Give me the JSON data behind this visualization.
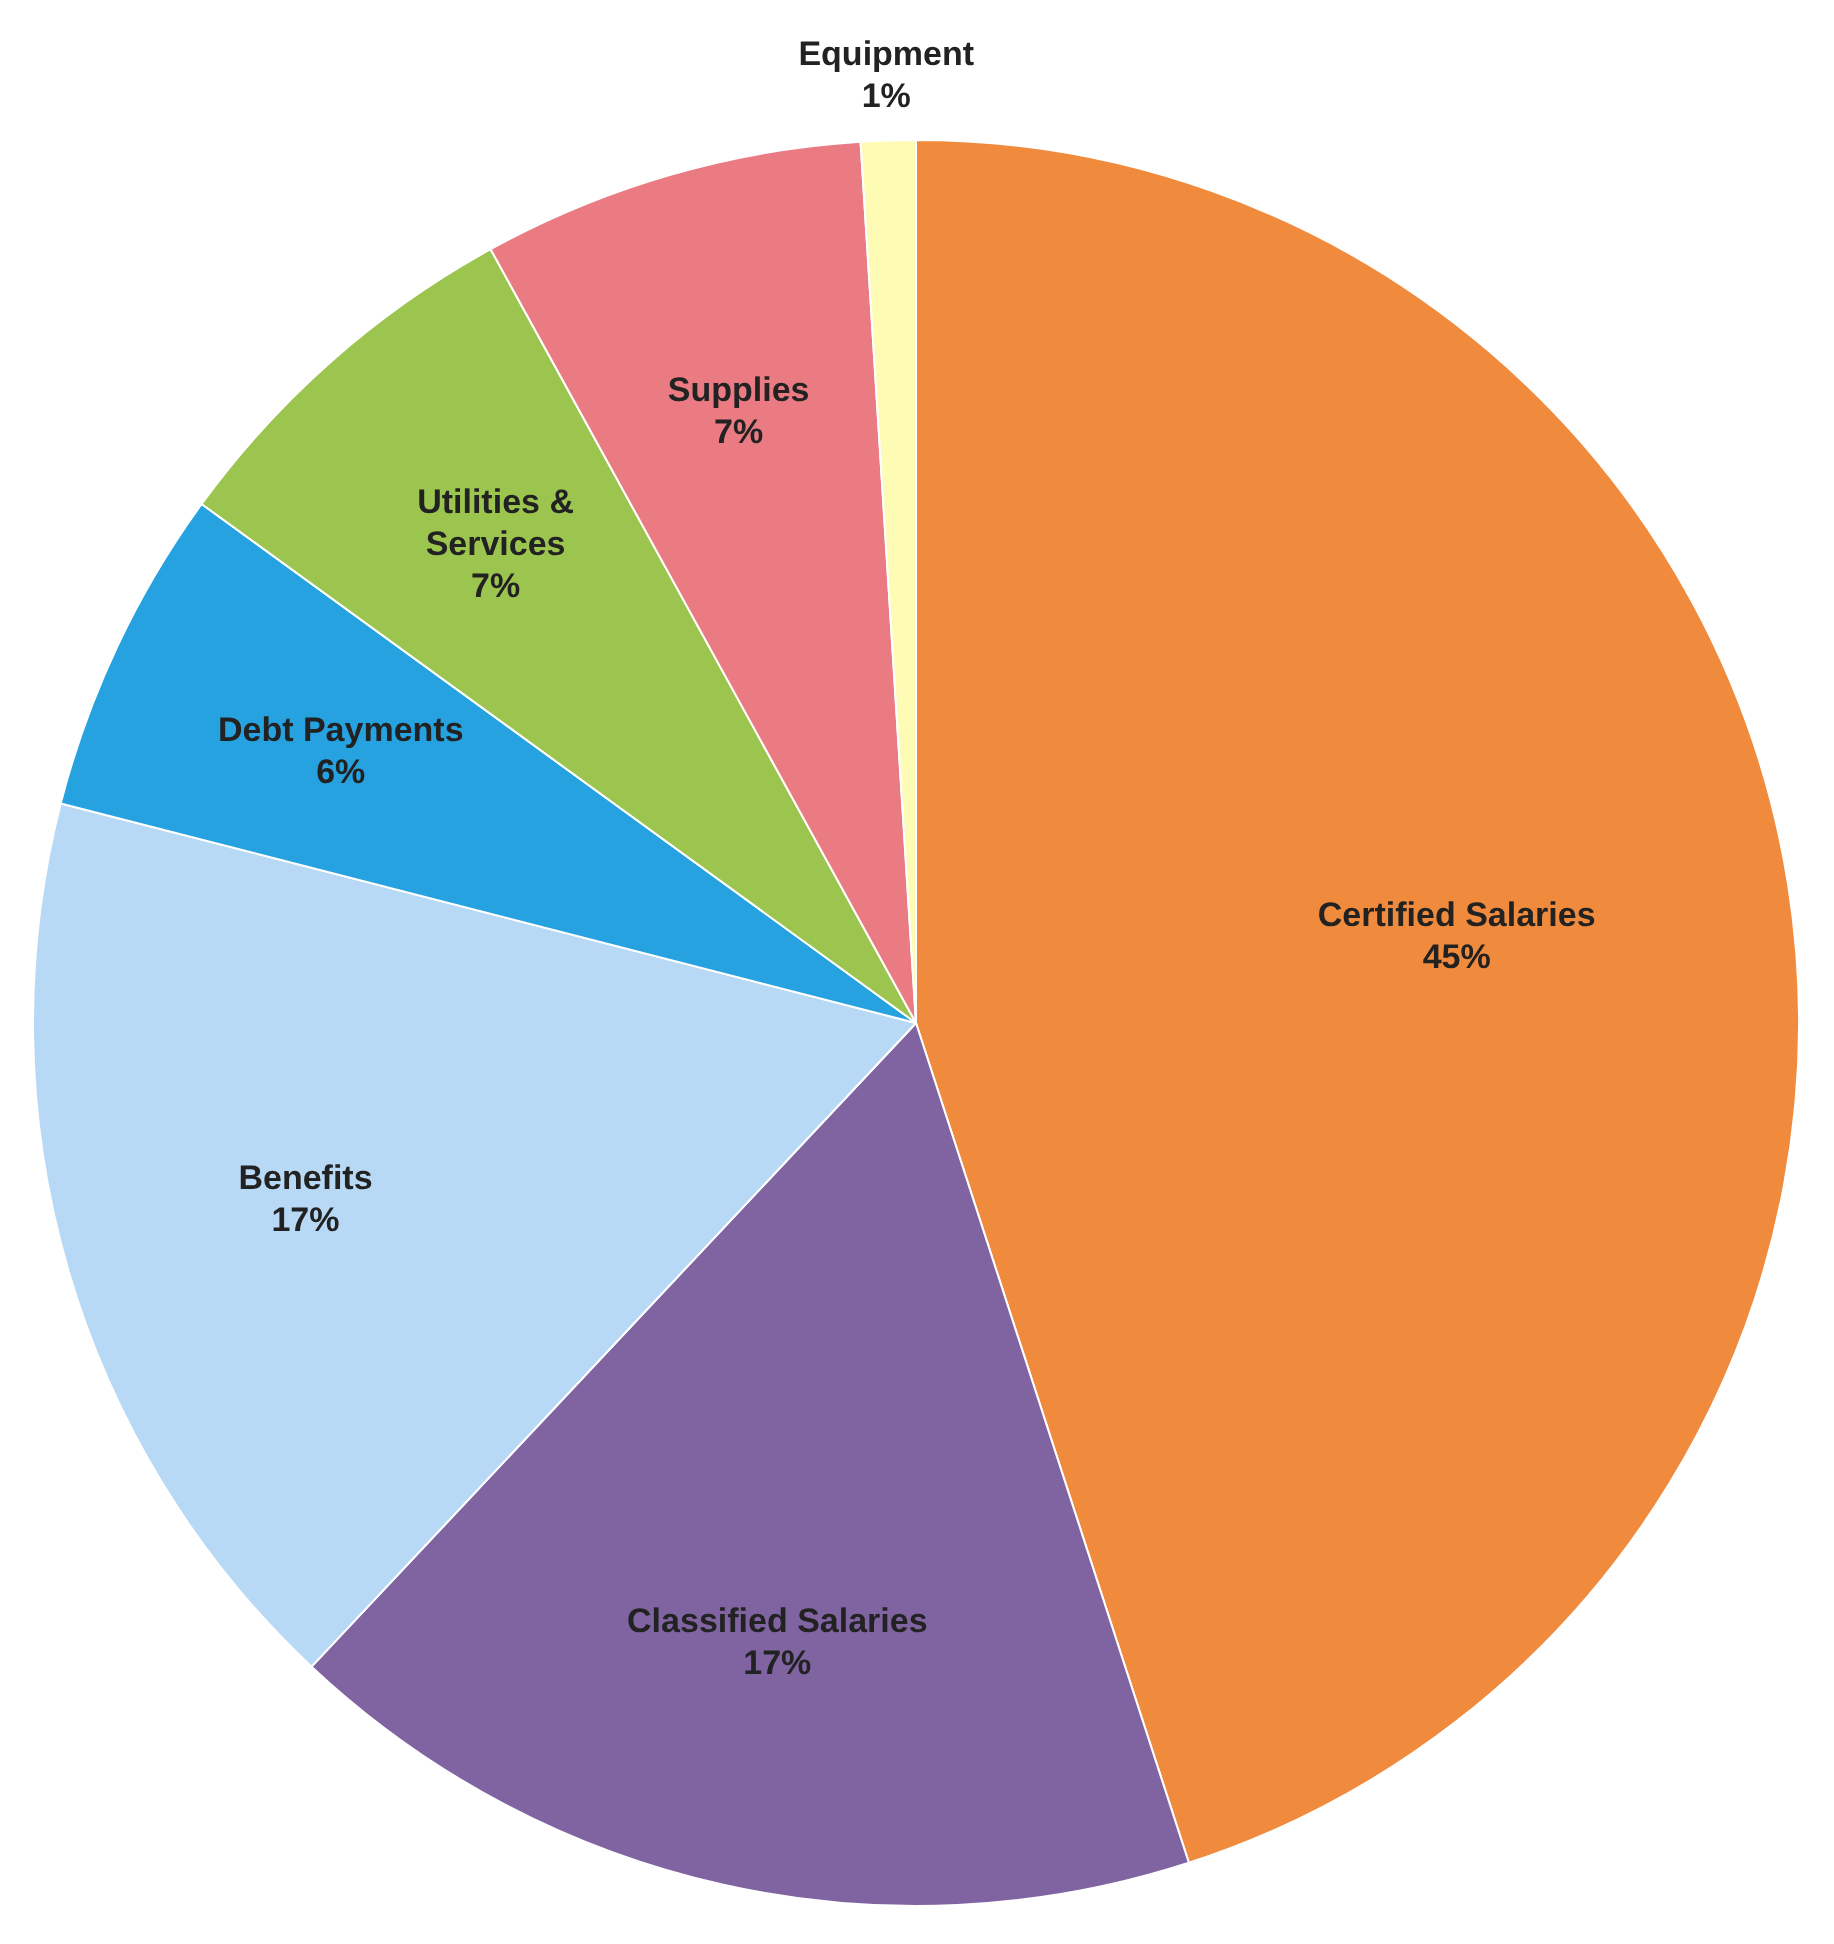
{
  "chart_data": {
    "type": "pie",
    "categories": [
      "Certified Salaries",
      "Classified Salaries",
      "Benefits",
      "Debt Payments",
      "Utilities & Services",
      "Supplies",
      "Equipment"
    ],
    "values": [
      45,
      17,
      17,
      6,
      7,
      7,
      1
    ],
    "value_labels": [
      "45%",
      "17%",
      "17%",
      "6%",
      "7%",
      "7%",
      "1%"
    ],
    "colors": [
      "#f08a3c",
      "#8064a2",
      "#b8d9f5",
      "#26a2e0",
      "#9cc54f",
      "#ea7b82",
      "#fdfbb4"
    ],
    "legend": false
  }
}
